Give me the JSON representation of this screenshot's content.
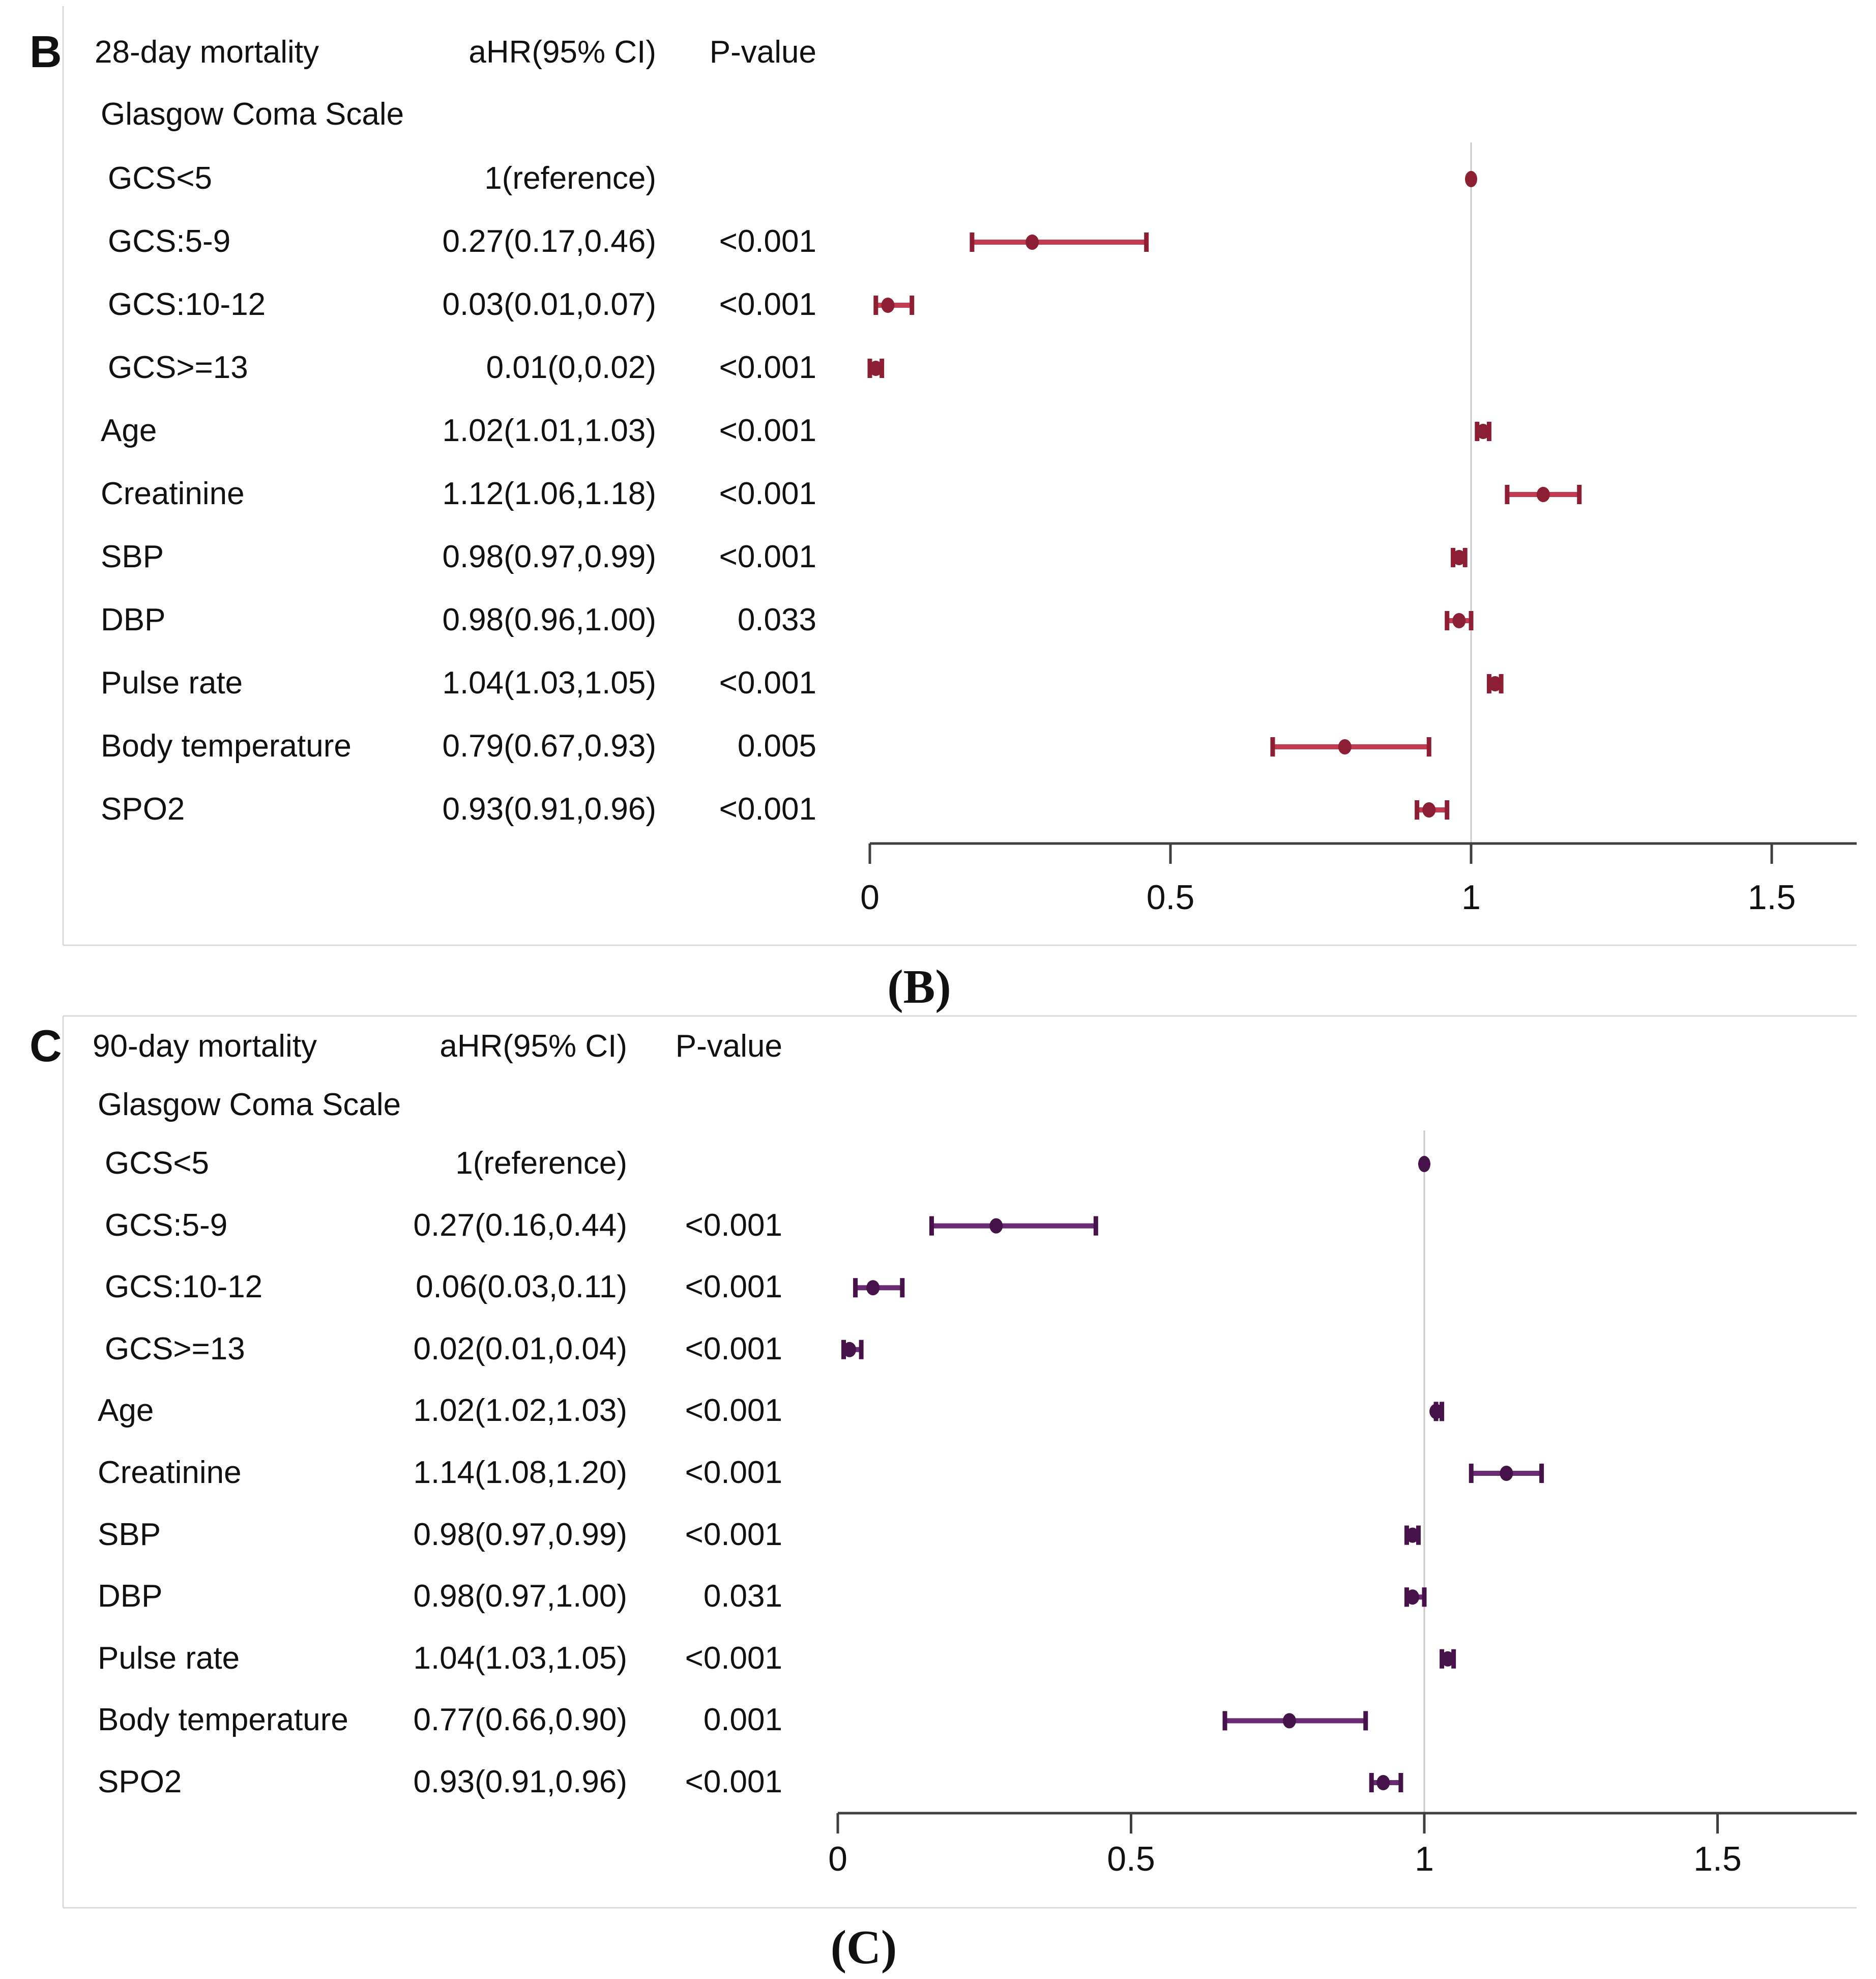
{
  "figure": {
    "background": "#ffffff",
    "border_color": "#d9d9d9",
    "axis_color": "#3f3f3f",
    "ref_line_color": "#c9c9c9",
    "text_color": "#111111"
  },
  "captions": {
    "b": "(B)",
    "c": "(C)"
  },
  "chart_data": [
    {
      "type": "forest",
      "panel_letter": "B",
      "col_headers": [
        "28-day mortality",
        "aHR(95% CI)",
        "P-value"
      ],
      "section_label": "Glasgow Coma Scale",
      "rows": [
        {
          "label": "GCS<5",
          "ahr": "1(reference)",
          "p": "",
          "est": 1.0,
          "lo": null,
          "hi": null,
          "subitem": true
        },
        {
          "label": "GCS:5-9",
          "ahr": "0.27(0.17,0.46)",
          "p": "<0.001",
          "est": 0.27,
          "lo": 0.17,
          "hi": 0.46,
          "subitem": true
        },
        {
          "label": "GCS:10-12",
          "ahr": "0.03(0.01,0.07)",
          "p": "<0.001",
          "est": 0.03,
          "lo": 0.01,
          "hi": 0.07,
          "subitem": true
        },
        {
          "label": "GCS>=13",
          "ahr": "0.01(0,0.02)",
          "p": "<0.001",
          "est": 0.01,
          "lo": 0.0,
          "hi": 0.02,
          "subitem": true
        },
        {
          "label": "Age",
          "ahr": "1.02(1.01,1.03)",
          "p": "<0.001",
          "est": 1.02,
          "lo": 1.01,
          "hi": 1.03,
          "subitem": false
        },
        {
          "label": "Creatinine",
          "ahr": "1.12(1.06,1.18)",
          "p": "<0.001",
          "est": 1.12,
          "lo": 1.06,
          "hi": 1.18,
          "subitem": false
        },
        {
          "label": "SBP",
          "ahr": "0.98(0.97,0.99)",
          "p": "<0.001",
          "est": 0.98,
          "lo": 0.97,
          "hi": 0.99,
          "subitem": false
        },
        {
          "label": "DBP",
          "ahr": "0.98(0.96,1.00)",
          "p": "0.033",
          "est": 0.98,
          "lo": 0.96,
          "hi": 1.0,
          "subitem": false
        },
        {
          "label": "Pulse rate",
          "ahr": "1.04(1.03,1.05)",
          "p": "<0.001",
          "est": 1.04,
          "lo": 1.03,
          "hi": 1.05,
          "subitem": false
        },
        {
          "label": "Body temperature",
          "ahr": "0.79(0.67,0.93)",
          "p": "0.005",
          "est": 0.79,
          "lo": 0.67,
          "hi": 0.93,
          "subitem": false
        },
        {
          "label": "SPO2",
          "ahr": "0.93(0.91,0.96)",
          "p": "<0.001",
          "est": 0.93,
          "lo": 0.91,
          "hi": 0.96,
          "subitem": false
        }
      ],
      "axis": {
        "ticks": [
          {
            "label": "0",
            "value": 0
          },
          {
            "label": "0.5",
            "value": 0.5
          },
          {
            "label": "1",
            "value": 1
          },
          {
            "label": "1.5",
            "value": 1.5
          }
        ],
        "reference_value": 1,
        "xlim": [
          0,
          1.63
        ],
        "grid": false
      },
      "colors": {
        "bar": "#c43a51",
        "marker": "#8c1f33"
      }
    },
    {
      "type": "forest",
      "panel_letter": "C",
      "col_headers": [
        "90-day mortality",
        "aHR(95% CI)",
        "P-value"
      ],
      "section_label": "Glasgow Coma Scale",
      "rows": [
        {
          "label": "GCS<5",
          "ahr": "1(reference)",
          "p": "",
          "est": 1.0,
          "lo": null,
          "hi": null,
          "subitem": true
        },
        {
          "label": "GCS:5-9",
          "ahr": "0.27(0.16,0.44)",
          "p": "<0.001",
          "est": 0.27,
          "lo": 0.16,
          "hi": 0.44,
          "subitem": true
        },
        {
          "label": "GCS:10-12",
          "ahr": "0.06(0.03,0.11)",
          "p": "<0.001",
          "est": 0.06,
          "lo": 0.03,
          "hi": 0.11,
          "subitem": true
        },
        {
          "label": "GCS>=13",
          "ahr": "0.02(0.01,0.04)",
          "p": "<0.001",
          "est": 0.02,
          "lo": 0.01,
          "hi": 0.04,
          "subitem": true
        },
        {
          "label": "Age",
          "ahr": "1.02(1.02,1.03)",
          "p": "<0.001",
          "est": 1.02,
          "lo": 1.02,
          "hi": 1.03,
          "subitem": false
        },
        {
          "label": "Creatinine",
          "ahr": "1.14(1.08,1.20)",
          "p": "<0.001",
          "est": 1.14,
          "lo": 1.08,
          "hi": 1.2,
          "subitem": false
        },
        {
          "label": "SBP",
          "ahr": "0.98(0.97,0.99)",
          "p": "<0.001",
          "est": 0.98,
          "lo": 0.97,
          "hi": 0.99,
          "subitem": false
        },
        {
          "label": "DBP",
          "ahr": "0.98(0.97,1.00)",
          "p": "0.031",
          "est": 0.98,
          "lo": 0.97,
          "hi": 1.0,
          "subitem": false
        },
        {
          "label": "Pulse rate",
          "ahr": "1.04(1.03,1.05)",
          "p": "<0.001",
          "est": 1.04,
          "lo": 1.03,
          "hi": 1.05,
          "subitem": false
        },
        {
          "label": "Body temperature",
          "ahr": "0.77(0.66,0.90)",
          "p": "0.001",
          "est": 0.77,
          "lo": 0.66,
          "hi": 0.9,
          "subitem": false
        },
        {
          "label": "SPO2",
          "ahr": "0.93(0.91,0.96)",
          "p": "<0.001",
          "est": 0.93,
          "lo": 0.91,
          "hi": 0.96,
          "subitem": false
        }
      ],
      "axis": {
        "ticks": [
          {
            "label": "0",
            "value": 0
          },
          {
            "label": "0.5",
            "value": 0.5
          },
          {
            "label": "1",
            "value": 1
          },
          {
            "label": "1.5",
            "value": 1.5
          }
        ],
        "reference_value": 1,
        "xlim": [
          0,
          1.74
        ],
        "grid": false
      },
      "colors": {
        "bar": "#6b2a74",
        "marker": "#451349"
      }
    }
  ]
}
